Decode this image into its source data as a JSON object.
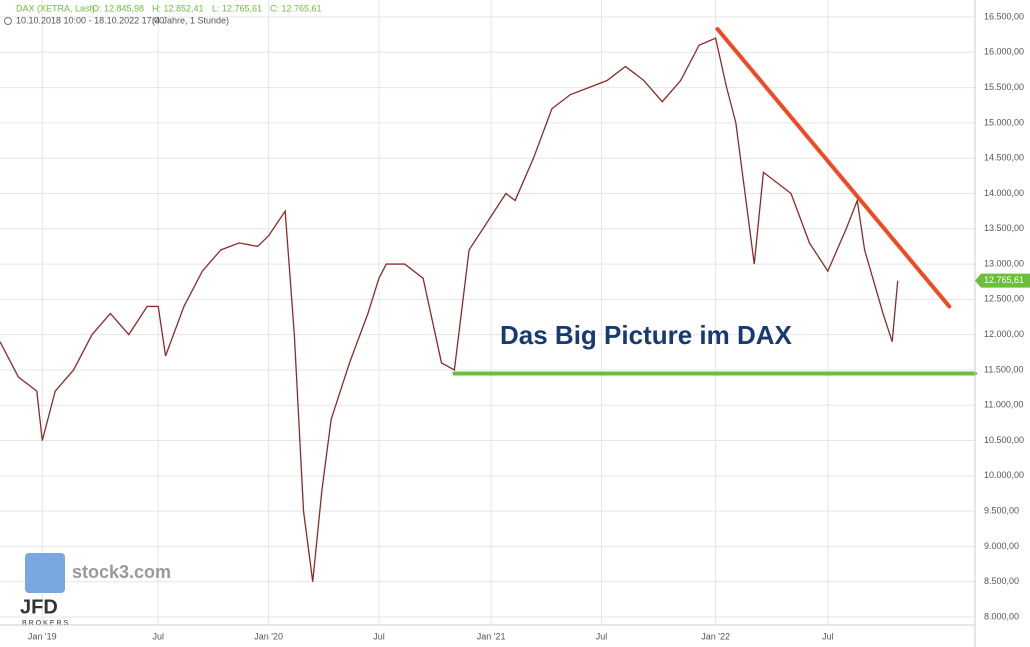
{
  "chart_data": {
    "type": "line",
    "title": "DAX (XETRA, Last)",
    "ohlc": [
      "O: 12.845,98",
      "H: 12.852,41",
      "L: 12.765,61",
      "C: 12.765,61"
    ],
    "subtitle": "10.10.2018 10:00 - 18.10.2022 17:00",
    "period": "(4 Jahre, 1 Stunde)",
    "annotation": "Das Big Picture im DAX",
    "watermark": "stock3.com",
    "broker": "JFD",
    "broker_sub": "BROKERS",
    "grid": true,
    "xlim": [
      0,
      53
    ],
    "ylim": [
      7887,
      16741
    ],
    "xticks": [
      {
        "value": 2.3,
        "label": "Jan '19"
      },
      {
        "value": 8.6,
        "label": "Jul"
      },
      {
        "value": 14.6,
        "label": "Jan '20"
      },
      {
        "value": 20.6,
        "label": "Jul"
      },
      {
        "value": 26.7,
        "label": "Jan '21"
      },
      {
        "value": 32.7,
        "label": "Jul"
      },
      {
        "value": 38.9,
        "label": "Jan '22"
      },
      {
        "value": 45.0,
        "label": "Jul"
      }
    ],
    "yticks": [
      {
        "value": 8000,
        "label": "8.000,00"
      },
      {
        "value": 8500,
        "label": "8.500,00"
      },
      {
        "value": 9000,
        "label": "9.000,00"
      },
      {
        "value": 9500,
        "label": "9.500,00"
      },
      {
        "value": 10000,
        "label": "10.000,00"
      },
      {
        "value": 10500,
        "label": "10.500,00"
      },
      {
        "value": 11000,
        "label": "11.000,00"
      },
      {
        "value": 11500,
        "label": "11.500,00"
      },
      {
        "value": 12000,
        "label": "12.000,00"
      },
      {
        "value": 12500,
        "label": "12.500,00"
      },
      {
        "value": 13000,
        "label": "13.000,00"
      },
      {
        "value": 13500,
        "label": "13.500,00"
      },
      {
        "value": 14000,
        "label": "14.000,00"
      },
      {
        "value": 14500,
        "label": "14.500,00"
      },
      {
        "value": 15000,
        "label": "15.000,00"
      },
      {
        "value": 15500,
        "label": "15.500,00"
      },
      {
        "value": 16000,
        "label": "16.000,00"
      },
      {
        "value": 16500,
        "label": "16.500,00"
      }
    ],
    "last": {
      "value": 12765.61,
      "label": "12.765,61",
      "color": "#6cbf3c"
    },
    "series": [
      {
        "color": "#8e2a2a",
        "x": [
          0,
          1,
          2,
          2.3,
          3,
          4,
          5,
          6,
          7,
          8,
          8.6,
          9,
          10,
          11,
          12,
          13,
          14,
          14.6,
          15.5,
          16,
          16.5,
          17,
          17.5,
          18,
          19,
          20,
          20.6,
          21,
          22,
          23,
          24,
          24.7,
          25.5,
          26.5,
          27.5,
          28,
          29,
          30,
          31,
          32,
          33,
          34,
          35,
          36,
          37,
          38,
          38.9,
          39.5,
          40,
          41,
          41.5,
          42,
          43,
          44,
          45,
          46,
          46.6,
          47,
          48,
          48.5,
          48.8
        ],
        "values": [
          11900,
          11400,
          11200,
          10500,
          11200,
          11500,
          12000,
          12300,
          12000,
          12400,
          12400,
          11700,
          12400,
          12900,
          13200,
          13300,
          13250,
          13400,
          13750,
          12000,
          9500,
          8500,
          9800,
          10800,
          11600,
          12300,
          12800,
          13000,
          13000,
          12800,
          11600,
          11500,
          13200,
          13600,
          14000,
          13900,
          14500,
          15200,
          15400,
          15500,
          15600,
          15800,
          15600,
          15300,
          15600,
          16100,
          16200,
          15500,
          15000,
          13000,
          14300,
          14200,
          14000,
          13300,
          12900,
          13500,
          13900,
          13200,
          12300,
          11900,
          12765.61
        ]
      }
    ],
    "lines": [
      {
        "color": "#f04a23",
        "x": [
          39,
          51.6
        ],
        "values": [
          16330,
          12400
        ]
      },
      {
        "color": "#6cbf3c",
        "x": [
          24.7,
          53
        ],
        "values": [
          11450,
          11450
        ]
      }
    ]
  }
}
